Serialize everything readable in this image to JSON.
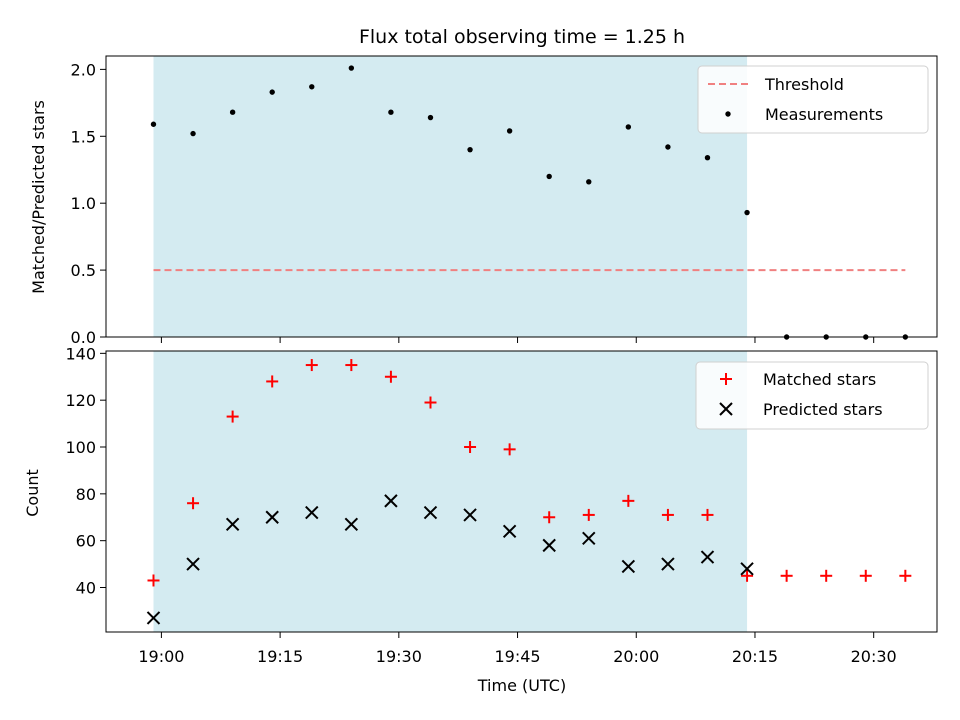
{
  "chart_data": [
    {
      "type": "scatter",
      "title": "Flux total observing time = 1.25 h",
      "xlabel": "",
      "ylabel": "Matched/Predicted stars",
      "ylim": [
        0,
        2.1
      ],
      "yticks": [
        "0.0",
        "0.5",
        "1.0",
        "1.5",
        "2.0"
      ],
      "yticks_values": [
        0,
        0.5,
        1.0,
        1.5,
        2.0
      ],
      "xlim": [
        "18:53",
        "20:38"
      ],
      "shaded_region": {
        "start": "18:59",
        "end": "20:14",
        "color": "#d4ebf1"
      },
      "threshold": {
        "name": "Threshold",
        "value": 0.5,
        "x_start": "18:59",
        "x_end": "20:34",
        "color": "#f08080"
      },
      "legend_position": "top-right",
      "series": [
        {
          "name": "Measurements",
          "color": "#000000",
          "x": [
            "18:59",
            "19:04",
            "19:09",
            "19:14",
            "19:19",
            "19:24",
            "19:29",
            "19:34",
            "19:39",
            "19:44",
            "19:49",
            "19:54",
            "19:59",
            "20:04",
            "20:09",
            "20:14",
            "20:19",
            "20:24",
            "20:29",
            "20:34"
          ],
          "y": [
            1.59,
            1.52,
            1.68,
            1.83,
            1.87,
            2.01,
            1.68,
            1.64,
            1.4,
            1.54,
            1.2,
            1.16,
            1.57,
            1.42,
            1.34,
            0.93,
            0.0,
            0.0,
            0.0,
            0.0
          ]
        }
      ]
    },
    {
      "type": "scatter",
      "title": "",
      "xlabel": "Time (UTC)",
      "ylabel": "Count",
      "ylim": [
        21,
        141
      ],
      "yticks": [
        "40",
        "60",
        "80",
        "100",
        "120",
        "140"
      ],
      "yticks_values": [
        40,
        60,
        80,
        100,
        120,
        140
      ],
      "xlim": [
        "18:53",
        "20:38"
      ],
      "xticks": [
        "19:00",
        "19:15",
        "19:30",
        "19:45",
        "20:00",
        "20:15",
        "20:30"
      ],
      "shaded_region": {
        "start": "18:59",
        "end": "20:14",
        "color": "#d4ebf1"
      },
      "legend_position": "top-right",
      "series": [
        {
          "name": "Matched stars",
          "marker": "plus",
          "color": "#ff0000",
          "x": [
            "18:59",
            "19:04",
            "19:09",
            "19:14",
            "19:19",
            "19:24",
            "19:29",
            "19:34",
            "19:39",
            "19:44",
            "19:49",
            "19:54",
            "19:59",
            "20:04",
            "20:09",
            "20:14",
            "20:19",
            "20:24",
            "20:29",
            "20:34"
          ],
          "y": [
            43,
            76,
            113,
            128,
            135,
            135,
            130,
            119,
            100,
            99,
            70,
            71,
            77,
            71,
            71,
            45,
            45,
            45,
            45,
            45
          ]
        },
        {
          "name": "Predicted stars",
          "marker": "x",
          "color": "#000000",
          "x": [
            "18:59",
            "19:04",
            "19:09",
            "19:14",
            "19:19",
            "19:24",
            "19:29",
            "19:34",
            "19:39",
            "19:44",
            "19:49",
            "19:54",
            "19:59",
            "20:04",
            "20:09",
            "20:14"
          ],
          "y": [
            27,
            50,
            67,
            70,
            72,
            67,
            77,
            72,
            71,
            64,
            58,
            61,
            49,
            50,
            53,
            48
          ]
        }
      ]
    }
  ]
}
